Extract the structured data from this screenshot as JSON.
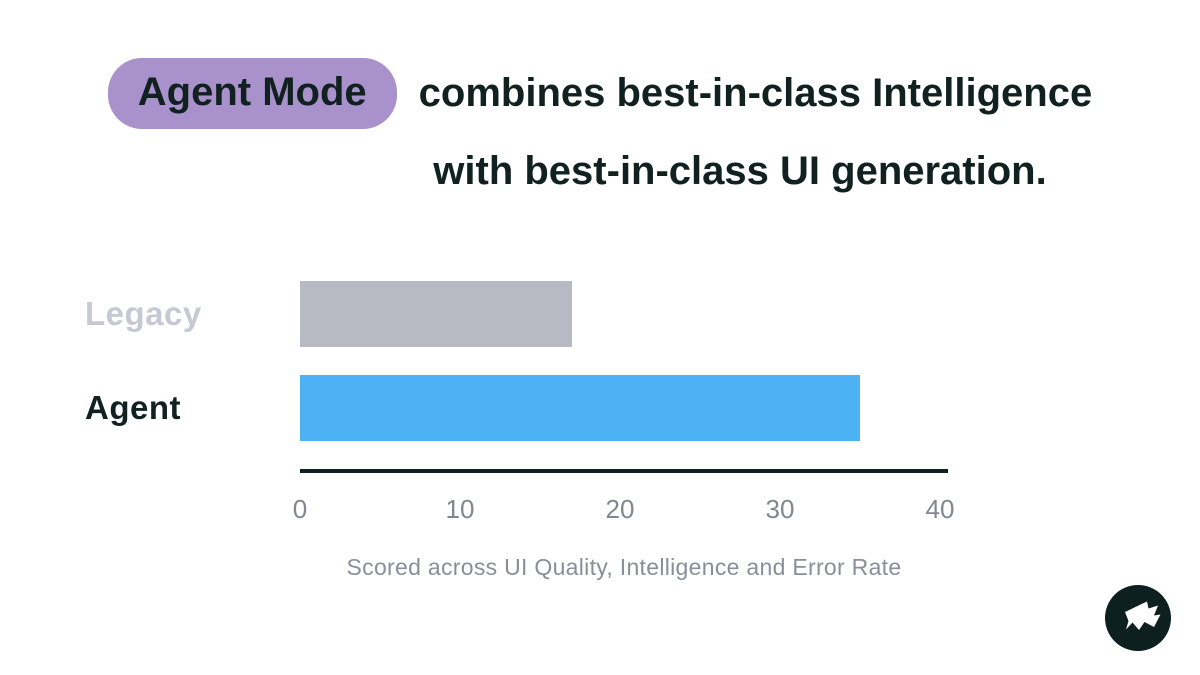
{
  "headline": {
    "badge": "Agent Mode",
    "line1": "combines best-in-class Intelligence",
    "line2": "with best-in-class UI generation."
  },
  "chart_data": {
    "type": "bar",
    "orientation": "horizontal",
    "categories": [
      "Legacy",
      "Agent"
    ],
    "values": [
      17,
      35
    ],
    "xlim": [
      0,
      40
    ],
    "xticks": [
      0,
      10,
      20,
      30,
      40
    ],
    "caption": "Scored across UI Quality, Intelligence and Error Rate",
    "bar_colors": [
      "#b8bac3",
      "#4cb2f5"
    ],
    "label_colors": [
      "#c6c8d3",
      "#112120"
    ],
    "grid": false,
    "legend": false,
    "title": "",
    "xlabel": "",
    "ylabel": ""
  },
  "branding": {
    "logo_icon": "flag-logo-icon",
    "logo_bg_color": "#0d1f1e",
    "logo_fg_color": "#ffffff"
  },
  "colors": {
    "background": "#ffffff",
    "badge_purple": "#a991cb",
    "text_dark": "#112120",
    "tick_gray": "#84868f",
    "caption_gray": "#8b8e99"
  }
}
